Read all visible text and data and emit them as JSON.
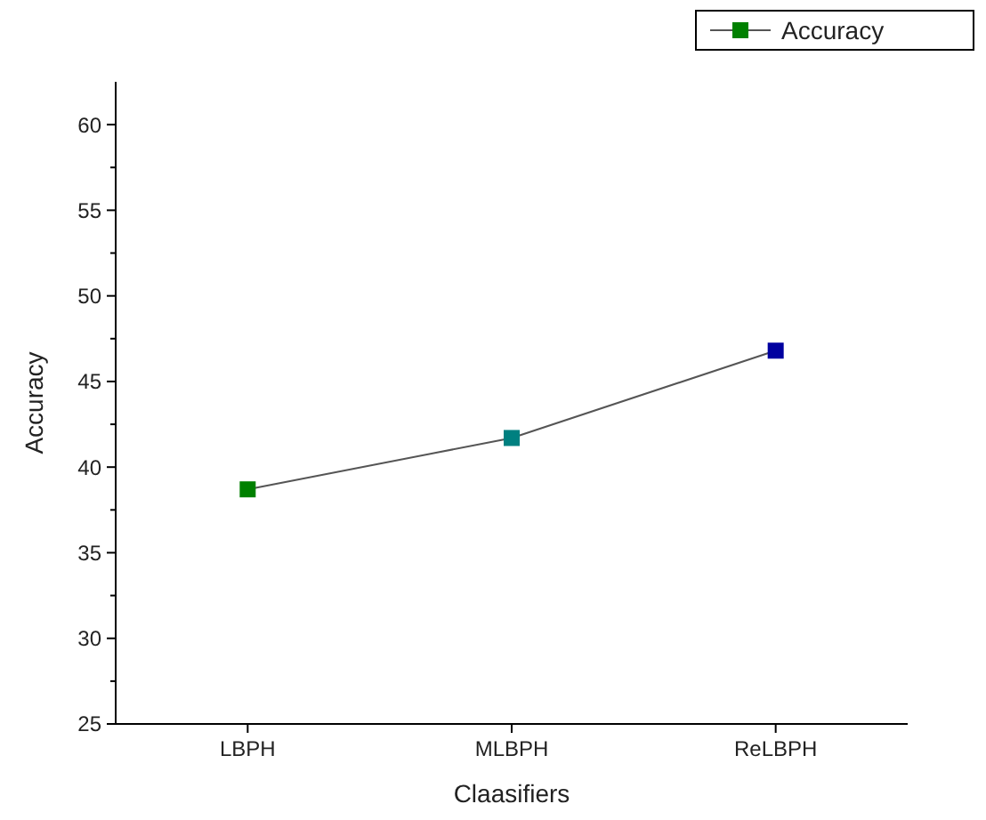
{
  "chart_data": {
    "type": "line",
    "xlabel": "Claasifiers",
    "ylabel": "Accuracy",
    "categories": [
      "LBPH",
      "MLBPH",
      "ReLBPH"
    ],
    "series": [
      {
        "name": "Accuracy",
        "color": "#555555",
        "colors": [
          "#008000",
          "#008080",
          "#0000a0"
        ],
        "values": [
          38.7,
          41.7,
          46.8
        ]
      }
    ],
    "ylim": [
      25,
      62.5
    ],
    "yticks": [
      25,
      {
        "value": 27.5,
        "label": null
      },
      30,
      {
        "value": 32.5,
        "label": null
      },
      35,
      {
        "value": 37.5,
        "label": null
      },
      40,
      {
        "value": 42.5,
        "label": null
      },
      45,
      {
        "value": 47.5,
        "label": null
      },
      50,
      {
        "value": 52.5,
        "label": null
      },
      55,
      {
        "value": 57.5,
        "label": null
      },
      60
    ],
    "marker": "square",
    "legend": "top right",
    "grid": false
  }
}
